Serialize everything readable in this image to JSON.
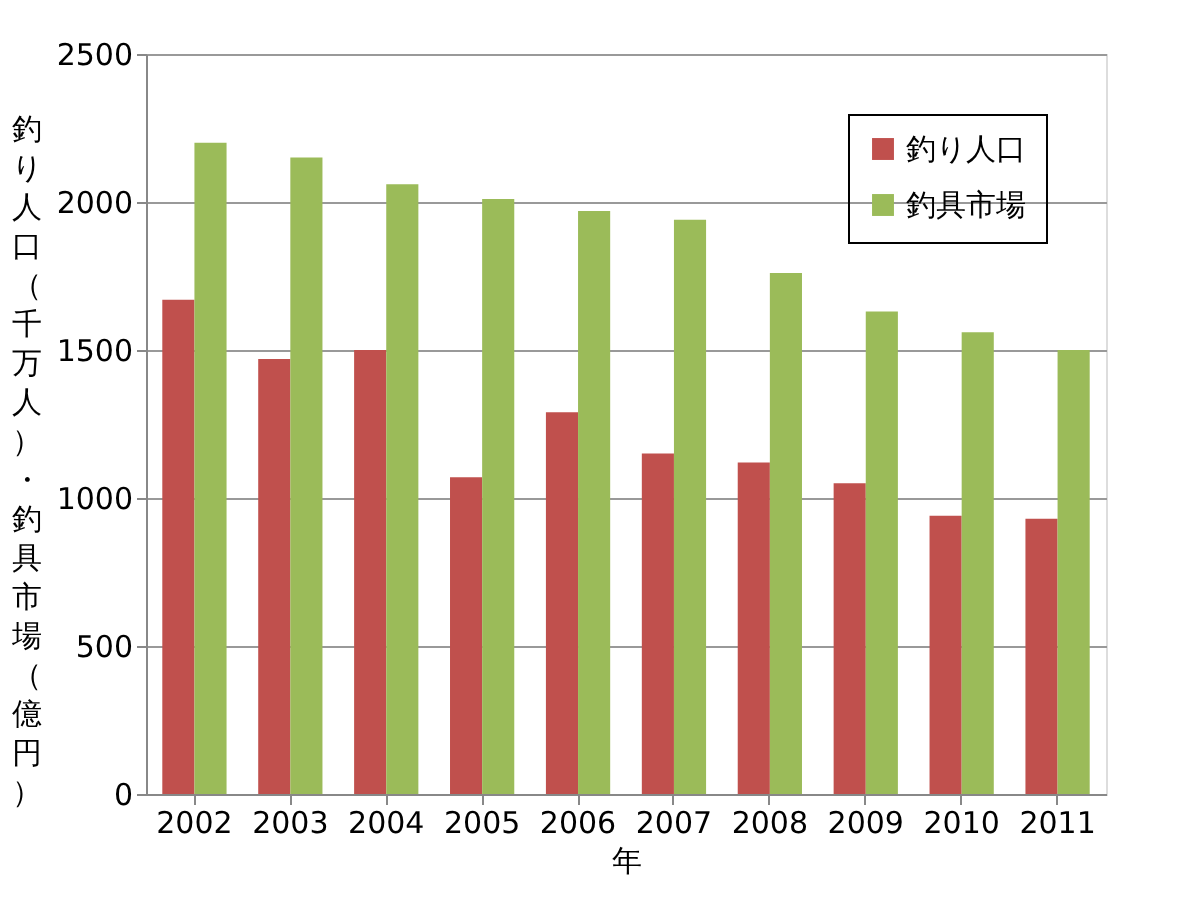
{
  "chart_data": {
    "type": "bar",
    "xlabel": "年",
    "ylabel": "釣り人口（千万人）・釣具市場（億円）",
    "categories": [
      "2002",
      "2003",
      "2004",
      "2005",
      "2006",
      "2007",
      "2008",
      "2009",
      "2010",
      "2011"
    ],
    "series": [
      {
        "name": "釣り人口",
        "color": "#c0504d",
        "values": [
          1670,
          1470,
          1500,
          1070,
          1290,
          1150,
          1120,
          1050,
          940,
          930
        ]
      },
      {
        "name": "釣具市場",
        "color": "#9bbb59",
        "values": [
          2200,
          2150,
          2060,
          2010,
          1970,
          1940,
          1760,
          1630,
          1560,
          1500
        ]
      }
    ],
    "ylim": [
      0,
      2500
    ],
    "yticks": [
      0,
      500,
      1000,
      1500,
      2000,
      2500
    ],
    "grid": "y",
    "legend": "top right"
  }
}
